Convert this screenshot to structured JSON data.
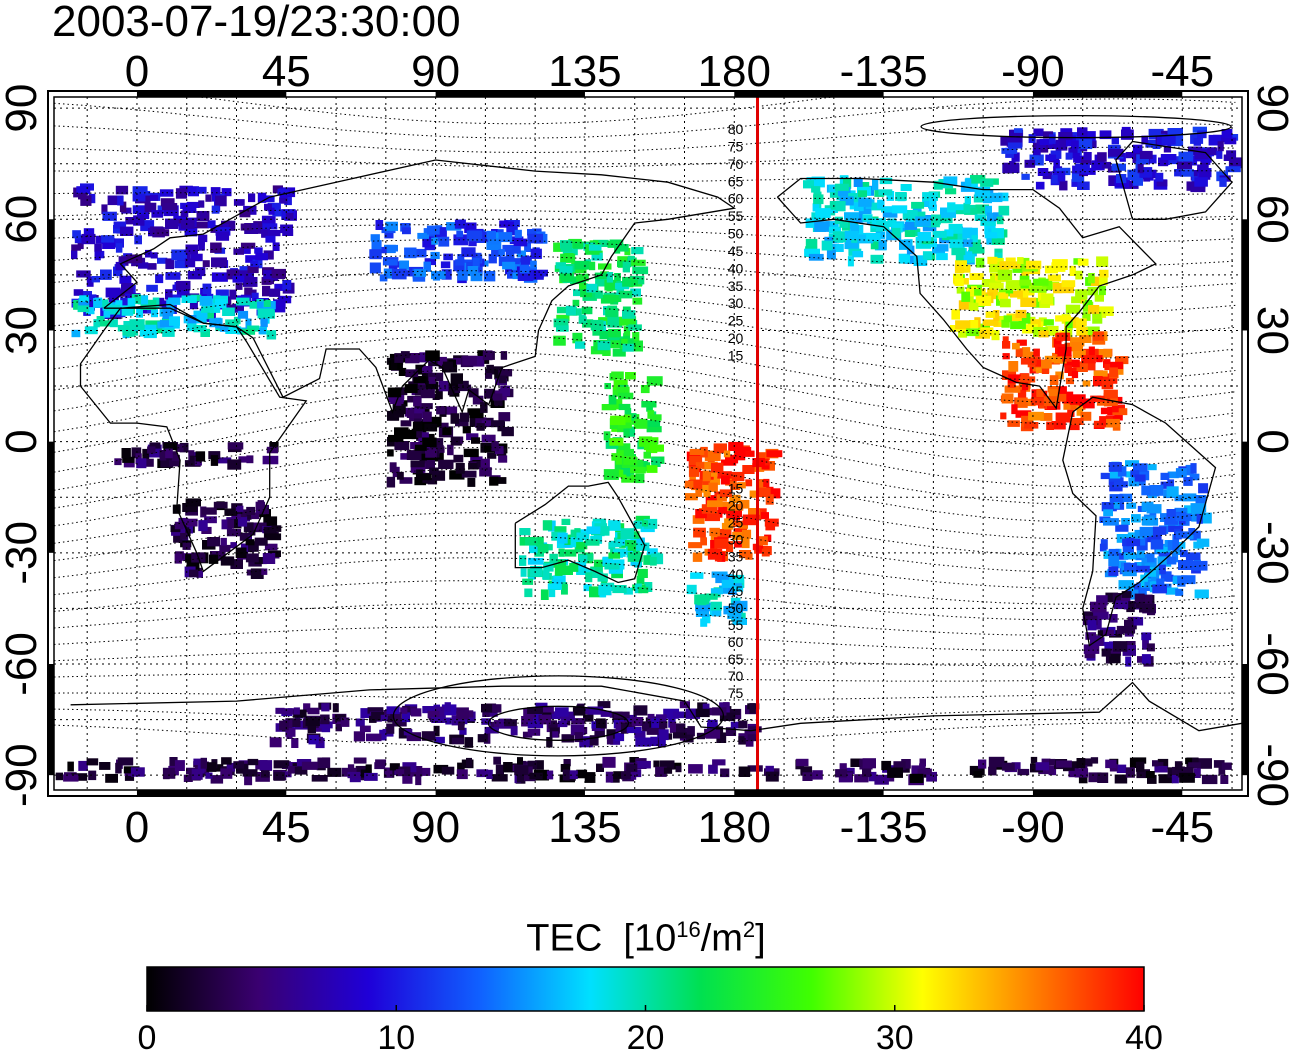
{
  "title": {
    "timestamp": "2003-07-19/23:30:00"
  },
  "map": {
    "lon_ticks": [
      {
        "lon": 0,
        "label": "0"
      },
      {
        "lon": 45,
        "label": "45"
      },
      {
        "lon": 90,
        "label": "90"
      },
      {
        "lon": 135,
        "label": "135"
      },
      {
        "lon": 180,
        "label": "180"
      },
      {
        "lon": 225,
        "label": "-135"
      },
      {
        "lon": 270,
        "label": "-90"
      },
      {
        "lon": 315,
        "label": "-45"
      }
    ],
    "lat_ticks": [
      {
        "lat": 90,
        "label": "90"
      },
      {
        "lat": 60,
        "label": "60"
      },
      {
        "lat": 30,
        "label": "30"
      },
      {
        "lat": 0,
        "label": "0"
      },
      {
        "lat": -30,
        "label": "-30"
      },
      {
        "lat": -60,
        "label": "-60"
      },
      {
        "lat": -90,
        "label": "-90"
      }
    ],
    "lon_range": [
      -25,
      333
    ],
    "lat_range": [
      -94,
      93
    ],
    "grid": "dotted 15°",
    "meridian_lon": 187,
    "meridian_color": "#e00000",
    "contour_labels_north": [
      "80",
      "75",
      "70",
      "65",
      "60",
      "55",
      "50",
      "45",
      "40",
      "35",
      "30",
      "25",
      "20",
      "15"
    ],
    "contour_labels_south": [
      "15",
      "20",
      "25",
      "30",
      "35",
      "40",
      "45",
      "50",
      "55",
      "60",
      "65",
      "70",
      "75"
    ]
  },
  "colorbar": {
    "label": "TEC",
    "unit_prefix": "[10",
    "unit_exp": "16",
    "unit_mid": "/m",
    "unit_exp2": "2",
    "unit_suffix": "]",
    "min": 0,
    "max": 40,
    "ticks": [
      "0",
      "10",
      "20",
      "30",
      "40"
    ],
    "colors": [
      "#000000",
      "#3a0070",
      "#1f00d8",
      "#1060ff",
      "#00e0ff",
      "#00e050",
      "#40ff00",
      "#ffff00",
      "#ff8000",
      "#ff0000"
    ]
  },
  "chart_data": {
    "type": "heatmap",
    "title": "2003-07-19/23:30:00",
    "colorbar_label": "TEC [10^16/m^2]",
    "value_range": [
      0,
      40
    ],
    "regions": [
      {
        "lon": [
          -20,
          45
        ],
        "lat": [
          35,
          70
        ],
        "tec": 8
      },
      {
        "lon": [
          -20,
          40
        ],
        "lat": [
          30,
          40
        ],
        "tec": 18
      },
      {
        "lon": [
          70,
          120
        ],
        "lat": [
          45,
          60
        ],
        "tec": 12
      },
      {
        "lon": [
          125,
          150
        ],
        "lat": [
          25,
          55
        ],
        "tec": 22
      },
      {
        "lon": [
          140,
          155
        ],
        "lat": [
          -10,
          20
        ],
        "tec": 24
      },
      {
        "lon": [
          165,
          190
        ],
        "lat": [
          -30,
          0
        ],
        "tec": 38
      },
      {
        "lon": [
          115,
          155
        ],
        "lat": [
          -40,
          -20
        ],
        "tec": 20
      },
      {
        "lon": [
          165,
          180
        ],
        "lat": [
          -48,
          -35
        ],
        "tec": 18
      },
      {
        "lon": [
          10,
          40
        ],
        "lat": [
          -35,
          -15
        ],
        "tec": 3
      },
      {
        "lon": [
          -10,
          40
        ],
        "lat": [
          -5,
          0
        ],
        "tec": 3
      },
      {
        "lon": [
          75,
          110
        ],
        "lat": [
          -10,
          25
        ],
        "tec": 2
      },
      {
        "lon": [
          200,
          260
        ],
        "lat": [
          50,
          72
        ],
        "tec": 18
      },
      {
        "lon": [
          245,
          290
        ],
        "lat": [
          30,
          50
        ],
        "tec": 30
      },
      {
        "lon": [
          260,
          295
        ],
        "lat": [
          5,
          30
        ],
        "tec": 38
      },
      {
        "lon": [
          290,
          320
        ],
        "lat": [
          -40,
          -5
        ],
        "tec": 14
      },
      {
        "lon": [
          285,
          305
        ],
        "lat": [
          -58,
          -40
        ],
        "tec": 4
      },
      {
        "lon": [
          260,
          330
        ],
        "lat": [
          70,
          85
        ],
        "tec": 9
      },
      {
        "lon": [
          -25,
          330
        ],
        "lat": [
          -90,
          -85
        ],
        "tec": 3
      },
      {
        "lon": [
          40,
          185
        ],
        "lat": [
          -80,
          -70
        ],
        "tec": 4
      }
    ]
  }
}
